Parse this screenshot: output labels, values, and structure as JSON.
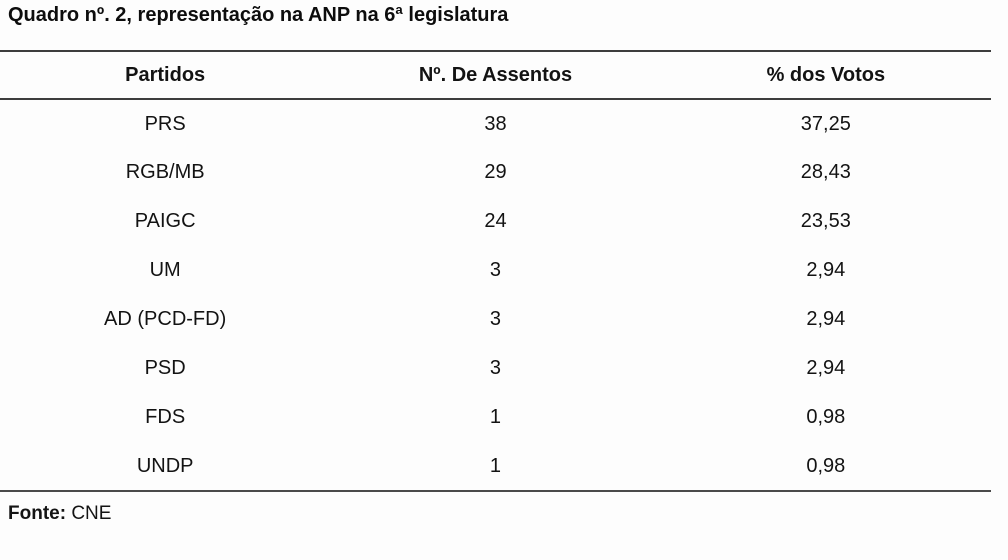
{
  "title": "Quadro nº. 2, representação na ANP na 6ª legislatura",
  "table": {
    "columns": [
      "Partidos",
      "Nº. De Assentos",
      "% dos Votos"
    ],
    "rows": [
      {
        "partido": "PRS",
        "assentos": "38",
        "votos": "37,25"
      },
      {
        "partido": "RGB/MB",
        "assentos": "29",
        "votos": "28,43"
      },
      {
        "partido": "PAIGC",
        "assentos": "24",
        "votos": "23,53"
      },
      {
        "partido": "UM",
        "assentos": "3",
        "votos": "2,94"
      },
      {
        "partido": "AD (PCD-FD)",
        "assentos": "3",
        "votos": "2,94"
      },
      {
        "partido": "PSD",
        "assentos": "3",
        "votos": "2,94"
      },
      {
        "partido": "FDS",
        "assentos": "1",
        "votos": "0,98"
      },
      {
        "partido": "UNDP",
        "assentos": "1",
        "votos": "0,98"
      }
    ]
  },
  "footer": {
    "label": "Fonte:",
    "value": "CNE"
  }
}
